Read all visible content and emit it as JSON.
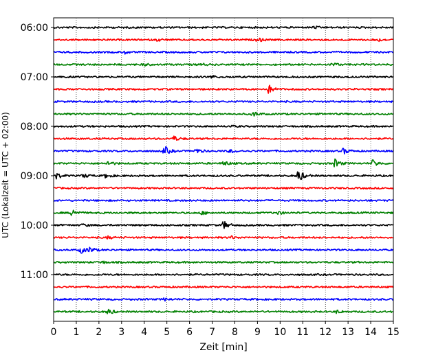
{
  "chart_data": {
    "type": "line",
    "title": "",
    "xlabel": "Zeit  [min]",
    "ylabel": "UTC (Lokalzeit = UTC + 02:00)",
    "xlim": [
      0,
      15
    ],
    "x_ticks": [
      "0",
      "1",
      "2",
      "3",
      "4",
      "5",
      "6",
      "7",
      "8",
      "9",
      "10",
      "11",
      "12",
      "13",
      "14",
      "15"
    ],
    "y_tick_labels": [
      "06:00",
      "07:00",
      "08:00",
      "09:00",
      "10:00",
      "11:00"
    ],
    "grid": "vertical dotted at each minute",
    "trace_interval_minutes": 15,
    "start_time_utc": "06:00",
    "trace_colors": [
      "#000000",
      "#ff0000",
      "#0000ff",
      "#008000"
    ],
    "traces": [
      {
        "start": "06:00",
        "color": "#000000",
        "events": [
          [
            11.5,
            0.5
          ]
        ]
      },
      {
        "start": "06:15",
        "color": "#ff0000",
        "events": [
          [
            4.6,
            0.6
          ],
          [
            9.0,
            1.0
          ],
          [
            14.2,
            1.0
          ]
        ]
      },
      {
        "start": "06:30",
        "color": "#0000ff",
        "events": [
          [
            3.1,
            0.9
          ]
        ]
      },
      {
        "start": "06:45",
        "color": "#008000",
        "events": [
          [
            4.0,
            0.5
          ],
          [
            6.5,
            0.5
          ],
          [
            12.3,
            0.8
          ]
        ]
      },
      {
        "start": "07:00",
        "color": "#000000",
        "events": [
          [
            6.9,
            0.8
          ]
        ]
      },
      {
        "start": "07:15",
        "color": "#ff0000",
        "events": [
          [
            9.5,
            2.0
          ]
        ]
      },
      {
        "start": "07:30",
        "color": "#0000ff",
        "events": []
      },
      {
        "start": "07:45",
        "color": "#008000",
        "events": [
          [
            8.8,
            1.3
          ]
        ]
      },
      {
        "start": "08:00",
        "color": "#000000",
        "events": [
          [
            7.8,
            0.4
          ]
        ]
      },
      {
        "start": "08:15",
        "color": "#ff0000",
        "events": [
          [
            5.3,
            1.2
          ]
        ]
      },
      {
        "start": "08:30",
        "color": "#0000ff",
        "events": [
          [
            4.9,
            2.2
          ],
          [
            6.3,
            1.2
          ],
          [
            7.8,
            0.8
          ],
          [
            12.8,
            1.4
          ]
        ]
      },
      {
        "start": "08:45",
        "color": "#008000",
        "events": [
          [
            2.4,
            1.0
          ],
          [
            7.5,
            1.2
          ],
          [
            12.4,
            2.2
          ],
          [
            14.1,
            1.8
          ]
        ]
      },
      {
        "start": "09:00",
        "color": "#000000",
        "events": [
          [
            0.1,
            1.6
          ],
          [
            1.3,
            1.0
          ],
          [
            2.3,
            1.0
          ],
          [
            10.8,
            3.2
          ]
        ]
      },
      {
        "start": "09:15",
        "color": "#ff0000",
        "events": []
      },
      {
        "start": "09:30",
        "color": "#0000ff",
        "events": []
      },
      {
        "start": "09:45",
        "color": "#008000",
        "events": [
          [
            0.8,
            2.0
          ],
          [
            6.5,
            0.8
          ],
          [
            9.9,
            0.8
          ]
        ]
      },
      {
        "start": "10:00",
        "color": "#000000",
        "events": [
          [
            1.3,
            0.6
          ],
          [
            7.5,
            2.0
          ]
        ]
      },
      {
        "start": "10:15",
        "color": "#ff0000",
        "events": [
          [
            2.4,
            0.6
          ],
          [
            7.8,
            0.7
          ]
        ]
      },
      {
        "start": "10:30",
        "color": "#0000ff",
        "events": [
          [
            1.2,
            1.6
          ],
          [
            1.6,
            1.2
          ]
        ]
      },
      {
        "start": "10:45",
        "color": "#008000",
        "events": [
          [
            2.1,
            0.6
          ]
        ]
      },
      {
        "start": "11:00",
        "color": "#000000",
        "events": []
      },
      {
        "start": "11:15",
        "color": "#ff0000",
        "events": []
      },
      {
        "start": "11:30",
        "color": "#0000ff",
        "events": [
          [
            4.9,
            0.6
          ]
        ]
      },
      {
        "start": "11:45",
        "color": "#008000",
        "events": [
          [
            2.4,
            1.4
          ],
          [
            12.5,
            0.7
          ]
        ]
      }
    ]
  }
}
